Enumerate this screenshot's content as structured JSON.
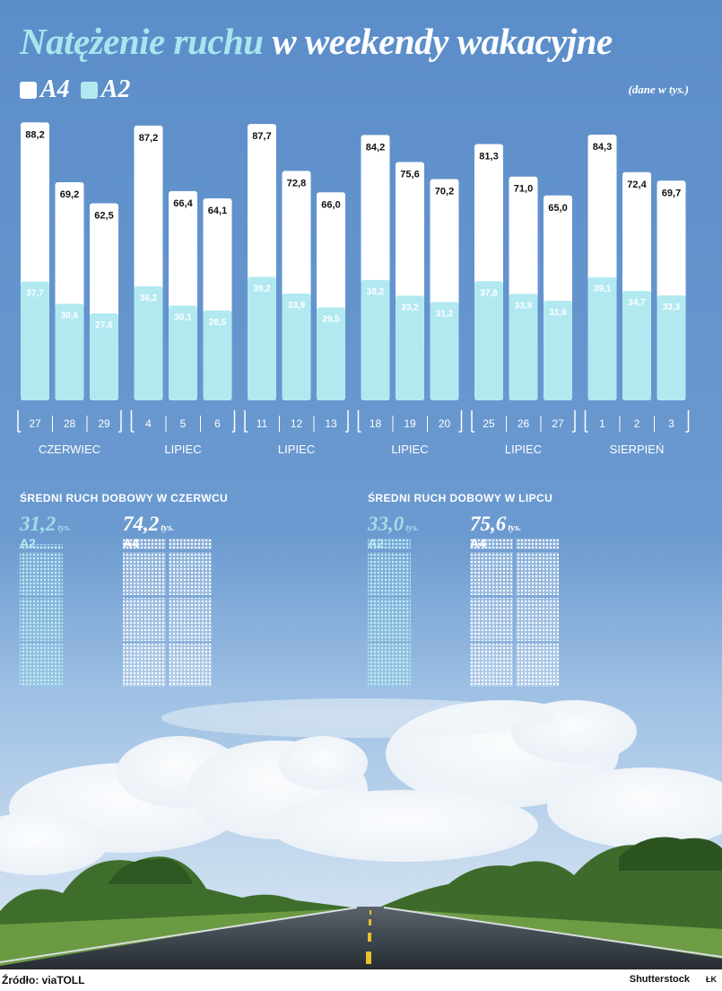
{
  "header": {
    "title_part1": "Natężenie ruchu",
    "title_part2": "w weekendy wakacyjne",
    "legend_a4": "A4",
    "legend_a2": "A2",
    "unit_note": "(dane w tys.)"
  },
  "colors": {
    "a4_bar": "#ffffff",
    "a2_bar": "#b2e9f1",
    "accent_title": "#a7e6ee",
    "sky_top": "#5d8fca",
    "sky_bottom": "#b4d1ea",
    "road": "#343c44",
    "road_marking": "#e8c12c",
    "grass": "#5a8f3c"
  },
  "chart_data": {
    "type": "bar",
    "value_scale_max": 90,
    "series": [
      {
        "name": "A4",
        "values": [
          88.2,
          69.2,
          62.5,
          87.2,
          66.4,
          64.1,
          87.7,
          72.8,
          66.0,
          84.2,
          75.6,
          70.2,
          81.3,
          71.0,
          65.0,
          84.3,
          72.4,
          69.7
        ]
      },
      {
        "name": "A2",
        "values": [
          37.7,
          30.6,
          27.6,
          36.2,
          30.1,
          28.5,
          39.2,
          33.9,
          29.5,
          38.2,
          33.2,
          31.2,
          37.8,
          33.8,
          31.6,
          39.1,
          34.7,
          33.3
        ]
      }
    ],
    "labels_a4": [
      "88,2",
      "69,2",
      "62,5",
      "87,2",
      "66,4",
      "64,1",
      "87,7",
      "72,8",
      "66,0",
      "84,2",
      "75,6",
      "70,2",
      "81,3",
      "71,0",
      "65,0",
      "84,3",
      "72,4",
      "69,7"
    ],
    "labels_a2": [
      "37,7",
      "30,6",
      "27,6",
      "36,2",
      "30,1",
      "28,5",
      "39,2",
      "33,9",
      "29,5",
      "38,2",
      "33,2",
      "31,2",
      "37,8",
      "33,8",
      "31,6",
      "39,1",
      "34,7",
      "33,3"
    ],
    "groups": [
      {
        "month": "CZERWIEC",
        "days": [
          "27",
          "28",
          "29"
        ]
      },
      {
        "month": "LIPIEC",
        "days": [
          "4",
          "5",
          "6"
        ]
      },
      {
        "month": "LIPIEC",
        "days": [
          "11",
          "12",
          "13"
        ]
      },
      {
        "month": "LIPIEC",
        "days": [
          "18",
          "19",
          "20"
        ]
      },
      {
        "month": "LIPIEC",
        "days": [
          "25",
          "26",
          "27"
        ]
      },
      {
        "month": "SIERPIEŃ",
        "days": [
          "1",
          "2",
          "3"
        ]
      }
    ]
  },
  "averages": {
    "june": {
      "title": "Średni ruch dobowy w czerwcu",
      "a2_value": "31,2",
      "a4_value": "74,2",
      "unit": "tys.",
      "a2_label": "A2",
      "a4_label": "A4",
      "a2_num": 31.2,
      "a4_num": 74.2
    },
    "july": {
      "title": "Średni ruch dobowy w lipcu",
      "a2_value": "33,0",
      "a4_value": "75,6",
      "unit": "tys.",
      "a2_label": "A2",
      "a4_label": "A4",
      "a2_num": 33.0,
      "a4_num": 75.6
    }
  },
  "footer": {
    "source": "Źródło: viaTOLL",
    "credit": "Shutterstock",
    "mark": "ŁK"
  }
}
